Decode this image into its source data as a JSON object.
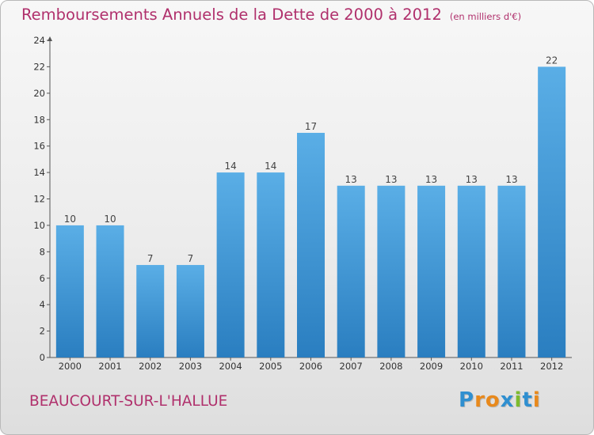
{
  "header": {
    "title": "Remboursements Annuels de la Dette de 2000 à 2012",
    "subtitle": "(en milliers d'€)"
  },
  "footer": {
    "location": "BEAUCOURT-SUR-L'HALLUE",
    "logo_letters": [
      "P",
      "r",
      "o",
      "x",
      "i",
      "t",
      "i"
    ],
    "logo_colors": [
      "#2f8fd0",
      "#e8891c",
      "#e8891c",
      "#2f8fd0",
      "#7dbb2e",
      "#2f8fd0",
      "#e8891c"
    ]
  },
  "chart_data": {
    "type": "bar",
    "categories": [
      "2000",
      "2001",
      "2002",
      "2003",
      "2004",
      "2005",
      "2006",
      "2007",
      "2008",
      "2009",
      "2010",
      "2011",
      "2012"
    ],
    "values": [
      10,
      10,
      7,
      7,
      14,
      14,
      17,
      13,
      13,
      13,
      13,
      13,
      22
    ],
    "title": "Remboursements Annuels de la Dette de 2000 à 2012",
    "subtitle": "(en milliers d'€)",
    "xlabel": "",
    "ylabel": "",
    "ylim": [
      0,
      24
    ],
    "yticks": [
      0,
      2,
      4,
      6,
      8,
      10,
      12,
      14,
      16,
      18,
      20,
      22,
      24
    ],
    "grid": false,
    "bar_color_top": "#5aaee6",
    "bar_color_bottom": "#2a7ec0"
  }
}
